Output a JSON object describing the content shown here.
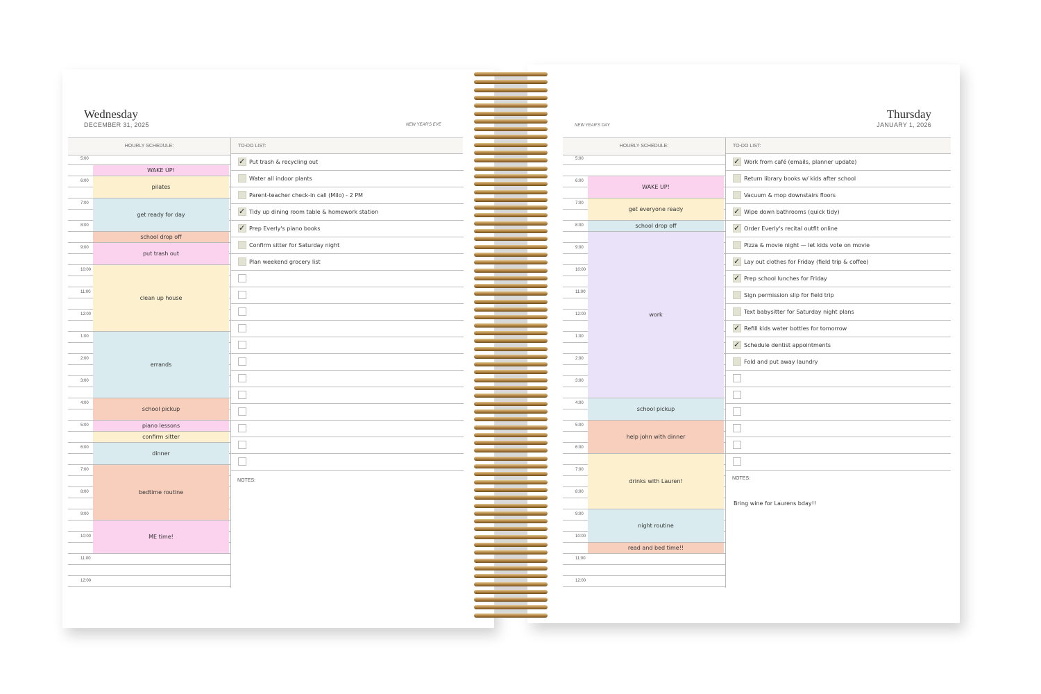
{
  "colors": {
    "pink": "#fcd3ee",
    "yellow": "#fdf0cf",
    "blue": "#d9ebee",
    "peach": "#f8cfbd",
    "purple": "#e9e2f8",
    "coil": "#b08545"
  },
  "times": [
    "5:00",
    "6:00",
    "7:00",
    "8:00",
    "9:00",
    "10:00",
    "11:00",
    "12:00",
    "1:00",
    "2:00",
    "3:00",
    "4:00",
    "5:00",
    "6:00",
    "7:00",
    "8:00",
    "9:00",
    "10:00",
    "11:00",
    "12:00"
  ],
  "left": {
    "day": "Wednesday",
    "date": "DECEMBER 31, 2025",
    "holiday": "NEW YEAR'S EVE",
    "schedule_header": "HOURLY SCHEDULE:",
    "todo_header": "TO-DO LIST:",
    "notes_label": "NOTES:",
    "notes": "",
    "blocks": [
      {
        "label": "WAKE UP!",
        "start": 1,
        "len": 1,
        "color": "pink"
      },
      {
        "label": "pilates",
        "start": 2,
        "len": 2,
        "color": "yellow"
      },
      {
        "label": "get ready for day",
        "start": 4,
        "len": 3,
        "color": "blue"
      },
      {
        "label": "school drop off",
        "start": 7,
        "len": 1,
        "color": "peach"
      },
      {
        "label": "put trash out",
        "start": 8,
        "len": 2,
        "color": "pink"
      },
      {
        "label": "clean up house",
        "start": 10,
        "len": 6,
        "color": "yellow"
      },
      {
        "label": "errands",
        "start": 16,
        "len": 6,
        "color": "blue"
      },
      {
        "label": "school pickup",
        "start": 22,
        "len": 2,
        "color": "peach"
      },
      {
        "label": "piano lessons",
        "start": 24,
        "len": 1,
        "color": "pink"
      },
      {
        "label": "confirm sitter",
        "start": 25,
        "len": 1,
        "color": "yellow"
      },
      {
        "label": "dinner",
        "start": 26,
        "len": 2,
        "color": "blue"
      },
      {
        "label": "bedtime routine",
        "start": 28,
        "len": 5,
        "color": "peach"
      },
      {
        "label": "ME time!",
        "start": 33,
        "len": 3,
        "color": "pink"
      }
    ],
    "todos": [
      {
        "text": "Put trash & recycling out",
        "done": true
      },
      {
        "text": "Water all indoor plants",
        "done": false
      },
      {
        "text": "Parent-teacher check-in call (Milo) - 2 PM",
        "done": false
      },
      {
        "text": "Tidy up dining room table & homework station",
        "done": true
      },
      {
        "text": "Prep Everly's piano books",
        "done": true
      },
      {
        "text": "Confirm sitter for Saturday night",
        "done": false
      },
      {
        "text": "Plan weekend grocery list",
        "done": false
      },
      {
        "text": "",
        "done": false
      },
      {
        "text": "",
        "done": false
      },
      {
        "text": "",
        "done": false
      },
      {
        "text": "",
        "done": false
      },
      {
        "text": "",
        "done": false
      },
      {
        "text": "",
        "done": false
      },
      {
        "text": "",
        "done": false
      },
      {
        "text": "",
        "done": false
      },
      {
        "text": "",
        "done": false
      },
      {
        "text": "",
        "done": false
      },
      {
        "text": "",
        "done": false
      },
      {
        "text": "",
        "done": false
      }
    ]
  },
  "right": {
    "day": "Thursday",
    "date": "JANUARY 1, 2026",
    "holiday": "NEW YEAR'S DAY",
    "schedule_header": "HOURLY SCHEDULE:",
    "todo_header": "TO-DO LIST:",
    "notes_label": "NOTES:",
    "notes": "Bring wine for Laurens bday!!",
    "blocks": [
      {
        "label": "WAKE UP!",
        "start": 2,
        "len": 2,
        "color": "pink"
      },
      {
        "label": "get everyone ready",
        "start": 4,
        "len": 2,
        "color": "yellow"
      },
      {
        "label": "school drop off",
        "start": 6,
        "len": 1,
        "color": "blue"
      },
      {
        "label": "work",
        "start": 7,
        "len": 15,
        "color": "purple"
      },
      {
        "label": "school pickup",
        "start": 22,
        "len": 2,
        "color": "blue"
      },
      {
        "label": "help john with dinner",
        "start": 24,
        "len": 3,
        "color": "peach"
      },
      {
        "label": "drinks with Lauren!",
        "start": 27,
        "len": 5,
        "color": "yellow"
      },
      {
        "label": "night routine",
        "start": 32,
        "len": 3,
        "color": "blue"
      },
      {
        "label": "read and bed time!!",
        "start": 35,
        "len": 1,
        "color": "peach"
      }
    ],
    "todos": [
      {
        "text": "Work from café (emails, planner update)",
        "done": true
      },
      {
        "text": "Return library books w/ kids after school",
        "done": false
      },
      {
        "text": "Vacuum & mop downstairs floors",
        "done": false
      },
      {
        "text": "Wipe down bathrooms (quick tidy)",
        "done": true
      },
      {
        "text": "Order Everly's recital outfit online",
        "done": true
      },
      {
        "text": "Pizza & movie night — let kids vote on movie",
        "done": false
      },
      {
        "text": "Lay out clothes for Friday (field trip & coffee)",
        "done": true
      },
      {
        "text": "Prep school lunches for Friday",
        "done": true
      },
      {
        "text": "Sign permission slip for field trip",
        "done": false
      },
      {
        "text": "Text babysitter for Saturday night plans",
        "done": false
      },
      {
        "text": "Refill kids water bottles for tomorrow",
        "done": true
      },
      {
        "text": "Schedule dentist appointments",
        "done": true
      },
      {
        "text": "Fold and put away laundry",
        "done": false
      },
      {
        "text": "",
        "done": false
      },
      {
        "text": "",
        "done": false
      },
      {
        "text": "",
        "done": false
      },
      {
        "text": "",
        "done": false
      },
      {
        "text": "",
        "done": false
      },
      {
        "text": "",
        "done": false
      }
    ]
  }
}
